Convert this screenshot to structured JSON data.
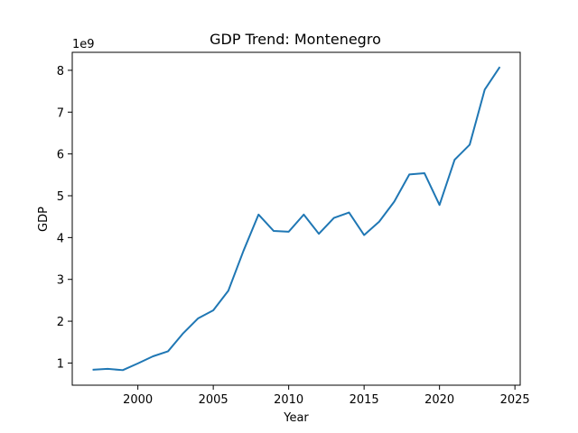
{
  "chart_data": {
    "type": "line",
    "title": "GDP Trend: Montenegro",
    "xlabel": "Year",
    "ylabel": "GDP",
    "y_scale_label": "1e9",
    "xlim": [
      1995.65,
      2025.35
    ],
    "ylim": [
      0.47,
      8.43
    ],
    "x_ticks": [
      2000,
      2005,
      2010,
      2015,
      2020,
      2025
    ],
    "y_ticks": [
      1,
      2,
      3,
      4,
      5,
      6,
      7,
      8
    ],
    "grid": false,
    "legend": "none",
    "series": [
      {
        "color": "#1f77b4",
        "x": [
          1997,
          1998,
          1999,
          2000,
          2001,
          2002,
          2003,
          2004,
          2005,
          2006,
          2007,
          2008,
          2009,
          2010,
          2011,
          2012,
          2013,
          2014,
          2015,
          2016,
          2017,
          2018,
          2019,
          2020,
          2021,
          2022,
          2023,
          2024
        ],
        "values": [
          0.84,
          0.86,
          0.83,
          0.99,
          1.16,
          1.28,
          1.71,
          2.07,
          2.26,
          2.73,
          3.68,
          4.55,
          4.16,
          4.14,
          4.55,
          4.09,
          4.47,
          4.6,
          4.06,
          4.38,
          4.86,
          5.51,
          5.54,
          4.78,
          5.86,
          6.22,
          7.54,
          8.08
        ]
      }
    ]
  }
}
